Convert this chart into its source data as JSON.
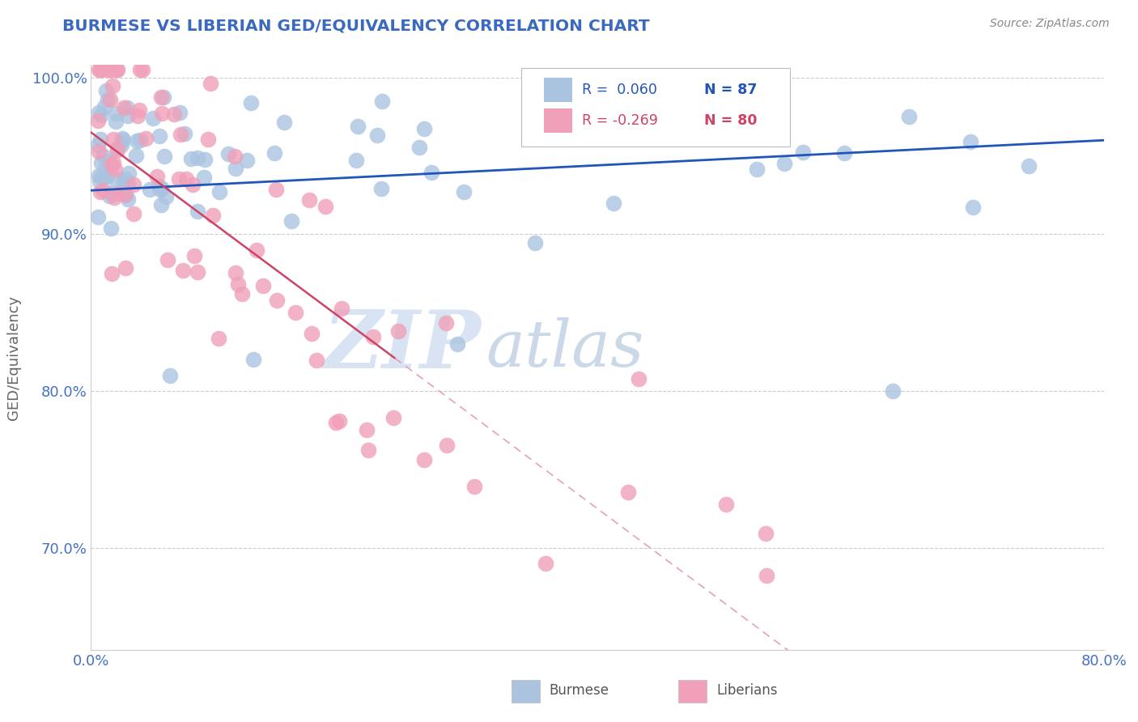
{
  "title": "BURMESE VS LIBERIAN GED/EQUIVALENCY CORRELATION CHART",
  "source": "Source: ZipAtlas.com",
  "ylabel_label": "GED/Equivalency",
  "xlim": [
    0.0,
    0.8
  ],
  "ylim": [
    0.635,
    1.008
  ],
  "xtick_positions": [
    0.0,
    0.1,
    0.2,
    0.3,
    0.4,
    0.5,
    0.6,
    0.7,
    0.8
  ],
  "xticklabels": [
    "0.0%",
    "",
    "",
    "",
    "",
    "",
    "",
    "",
    "80.0%"
  ],
  "ytick_positions": [
    0.7,
    0.8,
    0.9,
    1.0
  ],
  "yticklabels": [
    "70.0%",
    "80.0%",
    "90.0%",
    "100.0%"
  ],
  "blue_color": "#aac4e0",
  "pink_color": "#f0a0b8",
  "blue_line_color": "#2255bb",
  "pink_line_color": "#cc4466",
  "pink_line_dash_color": "#e8a0b4",
  "legend_R_blue": "R =  0.060",
  "legend_N_blue": "N = 87",
  "legend_R_pink": "R = -0.269",
  "legend_N_pink": "N = 80",
  "watermark_zip": "ZIP",
  "watermark_atlas": "atlas",
  "background_color": "#ffffff",
  "grid_color": "#cccccc",
  "title_color": "#3a6abf",
  "ylabel_color": "#666666",
  "tick_color": "#4472c4",
  "source_color": "#888888",
  "legend_text_color": "#333333",
  "legend_R_color_blue": "#2255bb",
  "legend_R_color_pink": "#cc4466"
}
